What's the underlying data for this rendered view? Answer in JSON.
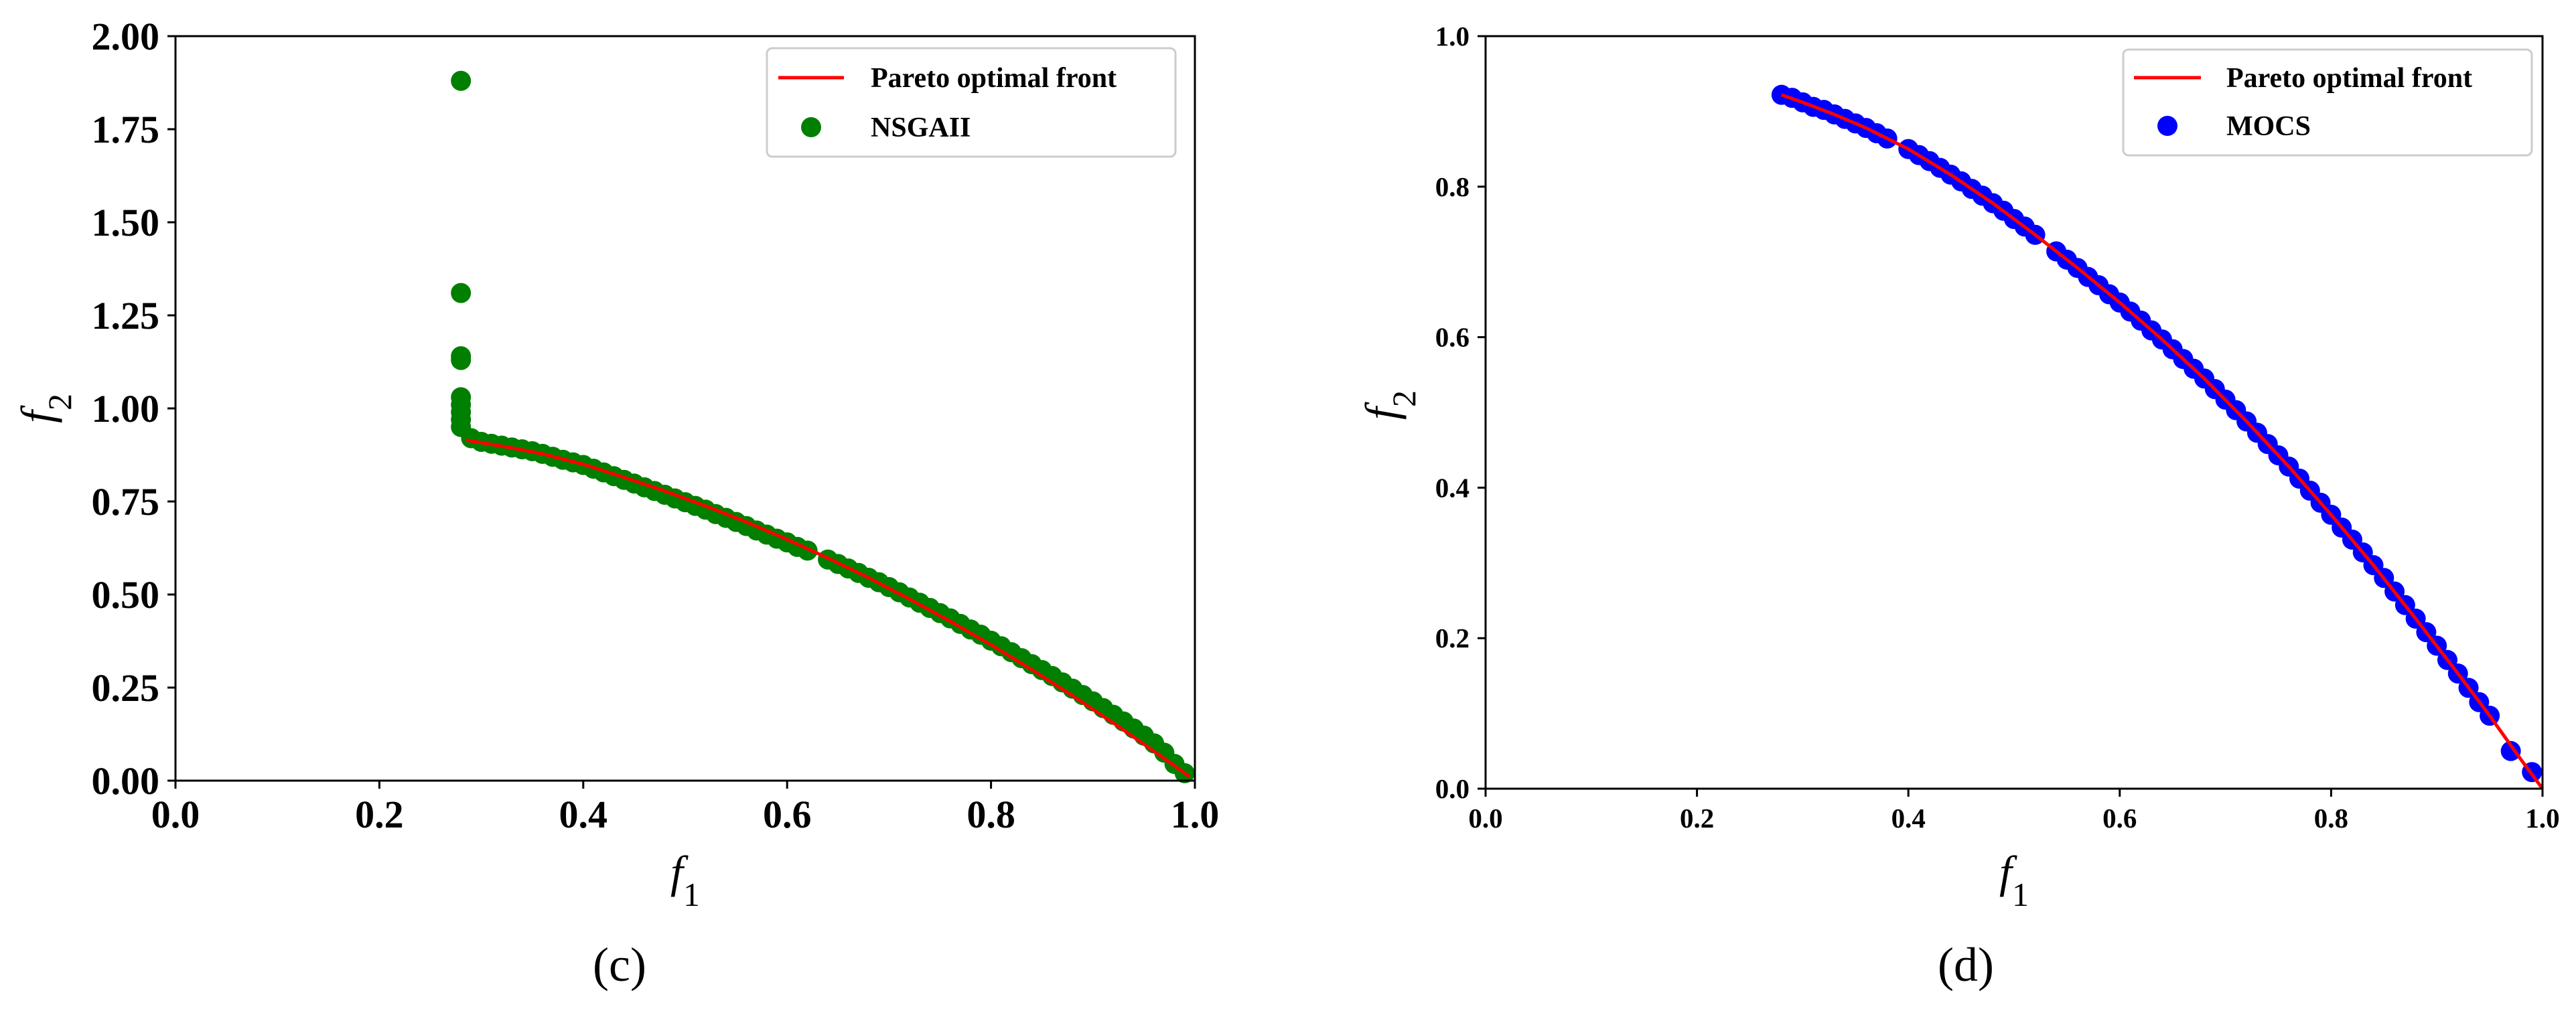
{
  "figure": {
    "panels": [
      {
        "label": "(c)"
      },
      {
        "label": "(d)"
      }
    ]
  },
  "chart_data": [
    {
      "type": "scatter",
      "panel": "(c)",
      "xlabel": "f1",
      "ylabel": "f2",
      "xlim": [
        0.0,
        1.0
      ],
      "ylim": [
        0.0,
        2.0
      ],
      "xticks": [
        "0.0",
        "0.2",
        "0.4",
        "0.6",
        "0.8",
        "1.0"
      ],
      "yticks": [
        "0.00",
        "0.25",
        "0.50",
        "0.75",
        "1.00",
        "1.25",
        "1.50",
        "1.75",
        "2.00"
      ],
      "grid": false,
      "legend_position": "top-right",
      "colors": {
        "front": "#ff0000",
        "points": "#007f00"
      },
      "series": [
        {
          "name": "Pareto optimal front",
          "kind": "line",
          "x": [
            0.285,
            0.3,
            0.33,
            0.36,
            0.4,
            0.44,
            0.48,
            0.52,
            0.56,
            0.6,
            0.64,
            0.68,
            0.72,
            0.76,
            0.8,
            0.84,
            0.88,
            0.92,
            0.95,
            0.98,
            0.995
          ],
          "y": [
            0.915,
            0.908,
            0.894,
            0.878,
            0.85,
            0.815,
            0.778,
            0.738,
            0.695,
            0.648,
            0.598,
            0.545,
            0.488,
            0.428,
            0.365,
            0.298,
            0.228,
            0.155,
            0.098,
            0.04,
            0.01
          ]
        },
        {
          "name": "NSGAII",
          "kind": "scatter",
          "x": [
            0.28,
            0.28,
            0.28,
            0.28,
            0.28,
            0.28,
            0.28,
            0.28,
            0.28,
            0.29,
            0.3,
            0.31,
            0.32,
            0.33,
            0.34,
            0.35,
            0.36,
            0.37,
            0.38,
            0.39,
            0.4,
            0.41,
            0.42,
            0.43,
            0.44,
            0.45,
            0.46,
            0.47,
            0.48,
            0.49,
            0.5,
            0.51,
            0.52,
            0.53,
            0.54,
            0.55,
            0.56,
            0.57,
            0.58,
            0.59,
            0.6,
            0.61,
            0.62,
            0.64,
            0.65,
            0.66,
            0.67,
            0.68,
            0.69,
            0.7,
            0.71,
            0.72,
            0.73,
            0.74,
            0.75,
            0.76,
            0.77,
            0.78,
            0.79,
            0.8,
            0.81,
            0.82,
            0.83,
            0.84,
            0.85,
            0.86,
            0.87,
            0.88,
            0.89,
            0.9,
            0.91,
            0.92,
            0.93,
            0.94,
            0.95,
            0.96,
            0.97,
            0.98,
            0.99
          ],
          "y": [
            1.88,
            1.31,
            1.14,
            1.13,
            1.03,
            1.01,
            0.99,
            0.97,
            0.95,
            0.92,
            0.91,
            0.905,
            0.9,
            0.895,
            0.89,
            0.885,
            0.878,
            0.87,
            0.862,
            0.855,
            0.848,
            0.838,
            0.828,
            0.818,
            0.808,
            0.798,
            0.788,
            0.778,
            0.768,
            0.758,
            0.748,
            0.738,
            0.728,
            0.716,
            0.706,
            0.695,
            0.684,
            0.672,
            0.661,
            0.65,
            0.64,
            0.628,
            0.618,
            0.594,
            0.582,
            0.57,
            0.558,
            0.545,
            0.533,
            0.52,
            0.506,
            0.492,
            0.478,
            0.464,
            0.45,
            0.436,
            0.421,
            0.406,
            0.392,
            0.376,
            0.361,
            0.345,
            0.329,
            0.313,
            0.297,
            0.281,
            0.264,
            0.247,
            0.23,
            0.213,
            0.195,
            0.177,
            0.159,
            0.14,
            0.121,
            0.1,
            0.075,
            0.045,
            0.02
          ]
        }
      ]
    },
    {
      "type": "scatter",
      "panel": "(d)",
      "xlabel": "f1",
      "ylabel": "f2",
      "xlim": [
        0.0,
        1.0
      ],
      "ylim": [
        0.0,
        1.0
      ],
      "xticks": [
        "0.0",
        "0.2",
        "0.4",
        "0.6",
        "0.8",
        "1.0"
      ],
      "yticks": [
        "0.0",
        "0.2",
        "0.4",
        "0.6",
        "0.8",
        "1.0"
      ],
      "grid": false,
      "legend_position": "top-right",
      "colors": {
        "front": "#ff0000",
        "points": "#0000ff"
      },
      "series": [
        {
          "name": "Pareto optimal front",
          "kind": "line",
          "x": [
            0.28,
            0.3,
            0.33,
            0.36,
            0.4,
            0.44,
            0.48,
            0.52,
            0.56,
            0.6,
            0.64,
            0.68,
            0.72,
            0.76,
            0.8,
            0.84,
            0.88,
            0.92,
            0.95,
            0.98,
            1.0
          ],
          "y": [
            0.922,
            0.912,
            0.896,
            0.878,
            0.85,
            0.816,
            0.778,
            0.736,
            0.692,
            0.646,
            0.597,
            0.545,
            0.488,
            0.428,
            0.364,
            0.297,
            0.226,
            0.153,
            0.097,
            0.038,
            0.0
          ]
        },
        {
          "name": "MOCS",
          "kind": "scatter",
          "x": [
            0.28,
            0.29,
            0.3,
            0.31,
            0.32,
            0.33,
            0.34,
            0.35,
            0.36,
            0.37,
            0.38,
            0.4,
            0.41,
            0.42,
            0.43,
            0.44,
            0.45,
            0.46,
            0.47,
            0.48,
            0.49,
            0.5,
            0.51,
            0.52,
            0.54,
            0.55,
            0.56,
            0.57,
            0.58,
            0.59,
            0.6,
            0.61,
            0.62,
            0.63,
            0.64,
            0.65,
            0.66,
            0.67,
            0.68,
            0.69,
            0.7,
            0.71,
            0.72,
            0.73,
            0.74,
            0.75,
            0.76,
            0.77,
            0.78,
            0.79,
            0.8,
            0.81,
            0.82,
            0.83,
            0.84,
            0.85,
            0.86,
            0.87,
            0.88,
            0.89,
            0.9,
            0.91,
            0.92,
            0.93,
            0.94,
            0.95,
            0.97,
            0.99
          ],
          "y": [
            0.922,
            0.918,
            0.912,
            0.906,
            0.902,
            0.896,
            0.89,
            0.884,
            0.878,
            0.871,
            0.864,
            0.85,
            0.842,
            0.834,
            0.825,
            0.816,
            0.807,
            0.797,
            0.788,
            0.778,
            0.768,
            0.757,
            0.747,
            0.736,
            0.714,
            0.703,
            0.692,
            0.68,
            0.669,
            0.657,
            0.646,
            0.634,
            0.622,
            0.609,
            0.597,
            0.584,
            0.571,
            0.558,
            0.545,
            0.531,
            0.517,
            0.503,
            0.488,
            0.473,
            0.458,
            0.443,
            0.428,
            0.412,
            0.396,
            0.38,
            0.364,
            0.347,
            0.331,
            0.314,
            0.297,
            0.28,
            0.262,
            0.244,
            0.226,
            0.208,
            0.19,
            0.171,
            0.153,
            0.134,
            0.115,
            0.097,
            0.05,
            0.022
          ]
        }
      ]
    }
  ]
}
